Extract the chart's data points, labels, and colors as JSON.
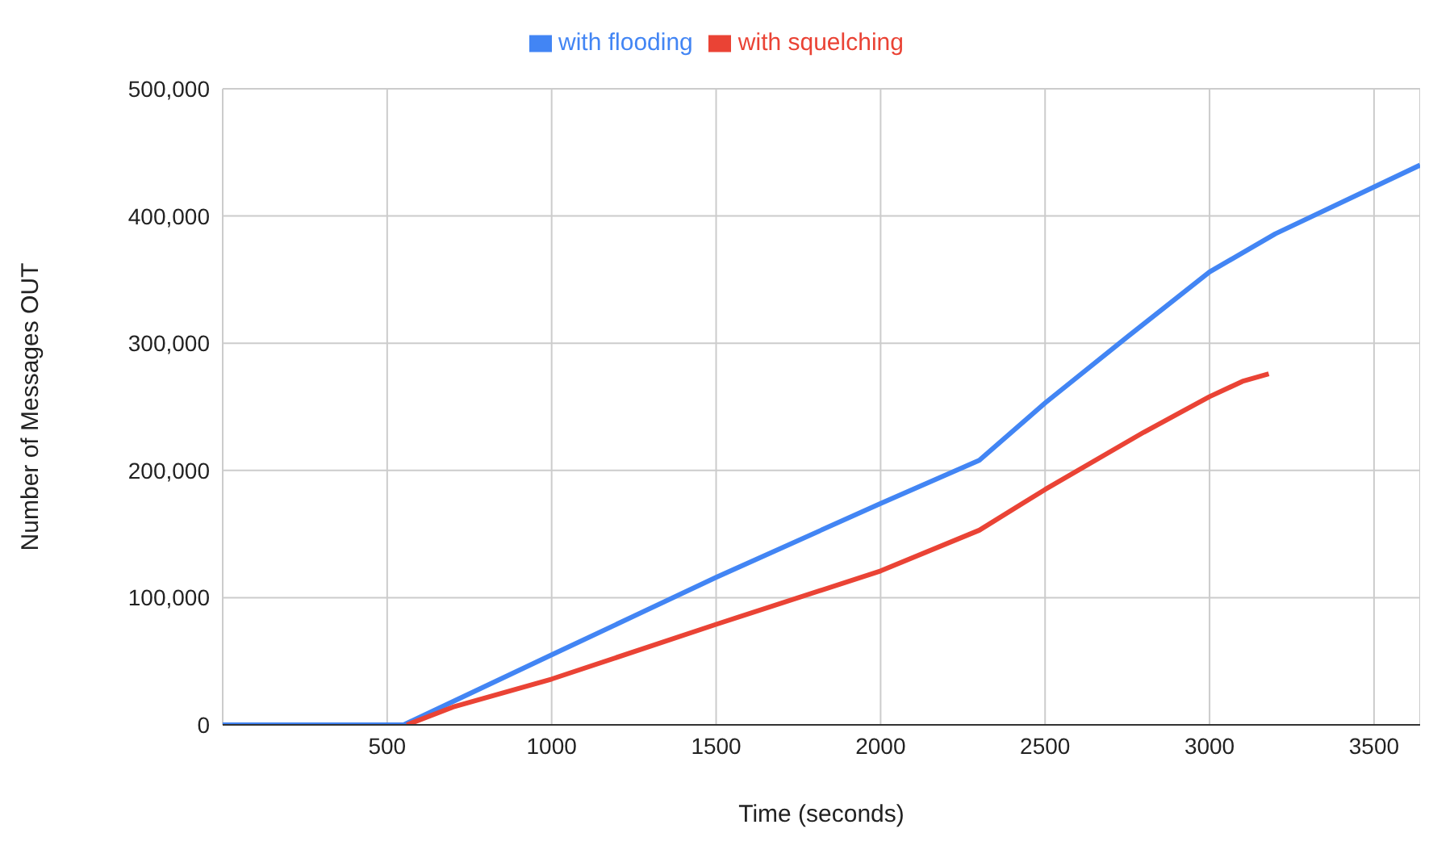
{
  "chart_data": {
    "type": "line",
    "xlabel": "Time (seconds)",
    "ylabel": "Number of Messages OUT",
    "xlim": [
      0,
      3640
    ],
    "xticks": [
      500,
      1000,
      1500,
      2000,
      2500,
      3000,
      3500
    ],
    "ylim": [
      0,
      500000
    ],
    "yticks": [
      0,
      {
        "value": 100000,
        "label": "100,000"
      },
      {
        "value": 200000,
        "label": "200,000"
      },
      {
        "value": 300000,
        "label": "300,000"
      },
      {
        "value": 400000,
        "label": "400,000"
      },
      {
        "value": 500000,
        "label": "500,000"
      }
    ],
    "grid": true,
    "legend": "top",
    "marker": "none",
    "line_style": "solid",
    "series": [
      {
        "name": "with flooding",
        "color": "#4285f4",
        "x": [
          0,
          550,
          1000,
          1500,
          2000,
          2300,
          2500,
          2750,
          3000,
          3200,
          3640
        ],
        "values": [
          0,
          0,
          55000,
          116000,
          174000,
          208000,
          253000,
          305000,
          356000,
          386000,
          440000
        ]
      },
      {
        "name": "with squelching",
        "color": "#ea4335",
        "x": [
          560,
          700,
          1000,
          1500,
          2000,
          2300,
          2500,
          2800,
          3000,
          3100,
          3180
        ],
        "values": [
          0,
          14000,
          36000,
          79000,
          121000,
          153000,
          185000,
          230000,
          258000,
          270000,
          276000
        ]
      }
    ]
  }
}
